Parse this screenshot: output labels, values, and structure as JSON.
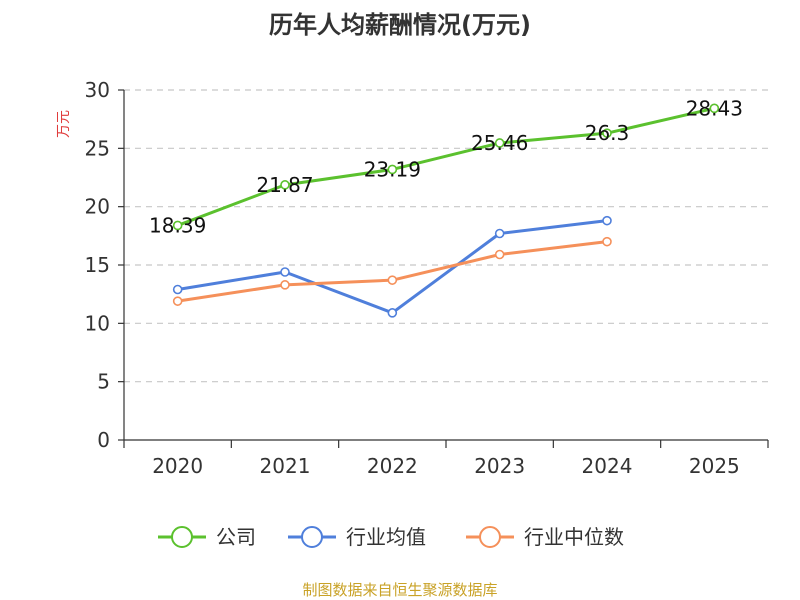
{
  "chart_data": {
    "type": "line",
    "title": "历年人均薪酬情况(万元)",
    "ylabel": "万元",
    "xlabel": "",
    "categories": [
      "2020",
      "2021",
      "2022",
      "2023",
      "2024",
      "2025"
    ],
    "ylim": [
      0,
      30
    ],
    "yticks": [
      0,
      5,
      10,
      15,
      20,
      25,
      30
    ],
    "grid": true,
    "legend_position": "bottom",
    "series": [
      {
        "name": "公司",
        "color": "#5bc12e",
        "values": [
          18.39,
          21.87,
          23.19,
          25.46,
          26.3,
          28.43
        ],
        "show_labels": true,
        "labels": [
          "18.39",
          "21.87",
          "23.19",
          "25.46",
          "26.3",
          "28.43"
        ]
      },
      {
        "name": "行业均值",
        "color": "#4f7fdb",
        "values": [
          12.9,
          14.4,
          10.9,
          17.7,
          18.8,
          null
        ],
        "show_labels": false
      },
      {
        "name": "行业中位数",
        "color": "#f5905a",
        "values": [
          11.9,
          13.3,
          13.7,
          15.9,
          17.0,
          null
        ],
        "show_labels": false
      }
    ]
  },
  "source_text": "制图数据来自恒生聚源数据库"
}
